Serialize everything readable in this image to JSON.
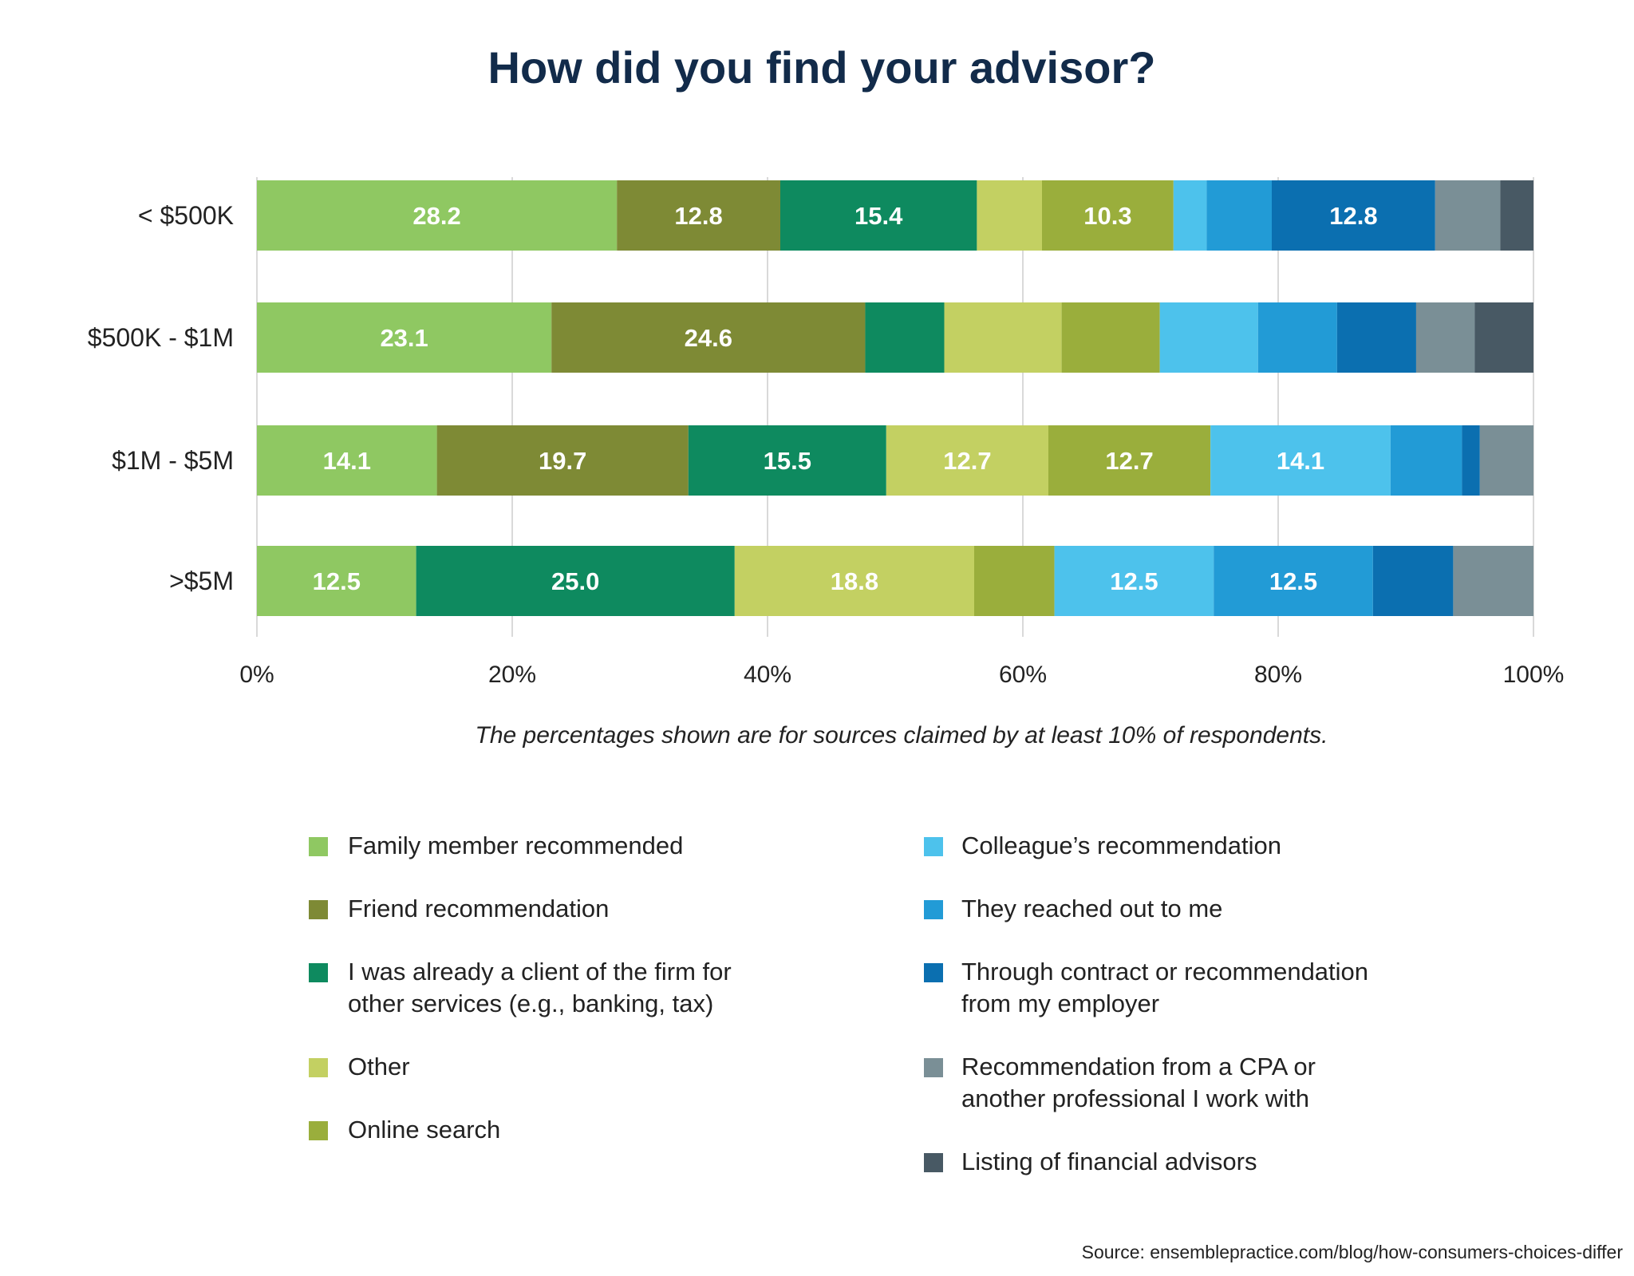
{
  "chart_data": {
    "type": "bar",
    "orientation": "horizontal",
    "stacked": true,
    "title": "How did you find your advisor?",
    "categories": [
      "< $500K",
      "$500K - $1M",
      "$1M - $5M",
      ">$5M"
    ],
    "series": [
      {
        "name": "Family member recommended",
        "color": "#8fc862",
        "values": [
          28.2,
          23.1,
          14.1,
          12.5
        ]
      },
      {
        "name": "Friend recommendation",
        "color": "#7e8a35",
        "values": [
          12.8,
          24.6,
          19.7,
          0
        ]
      },
      {
        "name": "I was already a client of the firm for other services (e.g., banking, tax)",
        "color": "#0e8a5f",
        "values": [
          15.4,
          6.2,
          15.5,
          25.0
        ]
      },
      {
        "name": "Other",
        "color": "#c3d062",
        "values": [
          5.1,
          9.2,
          12.7,
          18.8
        ]
      },
      {
        "name": "Online search",
        "color": "#9aae3c",
        "values": [
          10.3,
          7.7,
          12.7,
          6.3
        ]
      },
      {
        "name": "Colleague’s recommendation",
        "color": "#4dc2ec",
        "values": [
          2.6,
          7.7,
          14.1,
          12.5
        ]
      },
      {
        "name": "They reached out to me",
        "color": "#229bd6",
        "values": [
          5.1,
          6.2,
          5.6,
          12.5
        ]
      },
      {
        "name": "Through contract or recommendation from my employer",
        "color": "#0b6fb0",
        "values": [
          12.8,
          6.2,
          1.4,
          6.3
        ]
      },
      {
        "name": "Recommendation from a CPA or another professional I work with",
        "color": "#7a8f96",
        "values": [
          5.1,
          4.6,
          4.2,
          6.3
        ]
      },
      {
        "name": "Listing of financial advisors",
        "color": "#485964",
        "values": [
          2.6,
          4.6,
          0,
          0
        ]
      }
    ],
    "xlim": [
      0,
      100
    ],
    "xticks": [
      "0%",
      "20%",
      "40%",
      "60%",
      "80%",
      "100%"
    ],
    "grid": true,
    "legend_position": "bottom",
    "note": "The percentages shown are for sources claimed by at least 10% of respondents.",
    "label_threshold": 10
  },
  "legend": {
    "col1": [
      {
        "lines": [
          "Family member recommended"
        ]
      },
      {
        "lines": [
          "Friend recommendation"
        ]
      },
      {
        "lines": [
          "I was already a client of the firm for",
          "other services (e.g., banking, tax)"
        ]
      },
      {
        "lines": [
          "Other"
        ]
      },
      {
        "lines": [
          "Online search"
        ]
      }
    ],
    "col2": [
      {
        "lines": [
          "Colleague’s recommendation"
        ]
      },
      {
        "lines": [
          "They reached out to me"
        ]
      },
      {
        "lines": [
          "Through contract or recommendation",
          "from my employer"
        ]
      },
      {
        "lines": [
          "Recommendation from a CPA or",
          "another professional I work with"
        ]
      },
      {
        "lines": [
          "Listing of financial advisors"
        ]
      }
    ]
  },
  "source": "Source: ensemblepractice.com/blog/how-consumers-choices-differ"
}
